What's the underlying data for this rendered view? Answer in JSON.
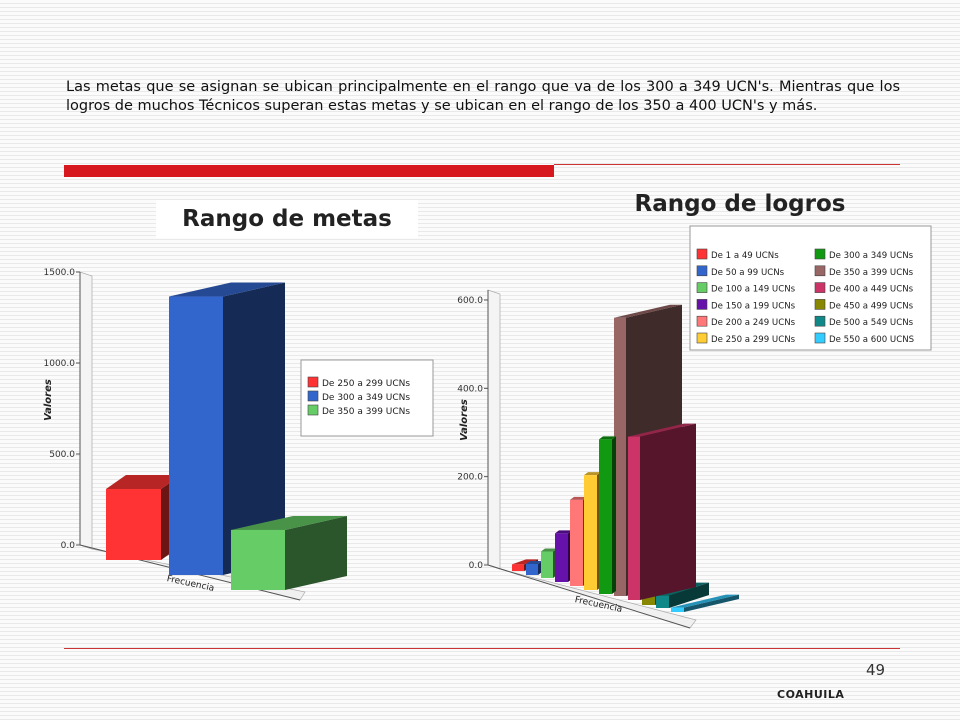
{
  "intro_text": "Las metas que se asignan se ubican principalmente en el rango que va de los 300 a 349 UCN's. Mientras que los logros de muchos Técnicos superan estas metas y se ubican en el rango de los 350 a 400 UCN's y más.",
  "page_number": "49",
  "footer_label": "COAHUILA",
  "chart_data": [
    {
      "type": "bar",
      "title": "Rango de metas",
      "ylabel": "Valores",
      "xlabel": "Frecuencia",
      "ylim": [
        0,
        1500
      ],
      "yticks": [
        "0.0",
        "500.0",
        "1000.0",
        "1500.0"
      ],
      "legend_position": "right",
      "series": [
        {
          "name": "De 250 a 299 UCNs",
          "value": 390,
          "color": "#ff3333"
        },
        {
          "name": "De 300 a 349 UCNs",
          "value": 1530,
          "color": "#3366cc"
        },
        {
          "name": "De 350 a 399 UCNs",
          "value": 330,
          "color": "#66cc66"
        }
      ]
    },
    {
      "type": "bar",
      "title": "Rango de logros",
      "ylabel": "Valores",
      "xlabel": "Frecuencia",
      "ylim": [
        0,
        600
      ],
      "yticks": [
        "0.0",
        "200.0",
        "400.0",
        "600.0"
      ],
      "legend_position": "top-right",
      "series": [
        {
          "name": "De 1 a 49 UCNs",
          "value": 15,
          "color": "#ff3333"
        },
        {
          "name": "De 50 a 99 UCNs",
          "value": 25,
          "color": "#3366cc"
        },
        {
          "name": "De 100 a 149 UCNs",
          "value": 60,
          "color": "#66cc66"
        },
        {
          "name": "De 150 a 199 UCNs",
          "value": 110,
          "color": "#6611aa"
        },
        {
          "name": "De 200 a 249 UCNs",
          "value": 195,
          "color": "#ff7777"
        },
        {
          "name": "De 250 a 299 UCNs",
          "value": 260,
          "color": "#ffcc33"
        },
        {
          "name": "De 300 a 349 UCNs",
          "value": 350,
          "color": "#119911"
        },
        {
          "name": "De 350 a 399 UCNs",
          "value": 630,
          "color": "#996666"
        },
        {
          "name": "De 400 a 449 UCNs",
          "value": 370,
          "color": "#cc3366"
        },
        {
          "name": "De 450 a 499 UCNs",
          "value": 30,
          "color": "#888800"
        },
        {
          "name": "De 500 a 549 UCNs",
          "value": 28,
          "color": "#118888"
        },
        {
          "name": "De 550 a 600 UCNS",
          "value": 10,
          "color": "#33ccff"
        }
      ]
    }
  ]
}
